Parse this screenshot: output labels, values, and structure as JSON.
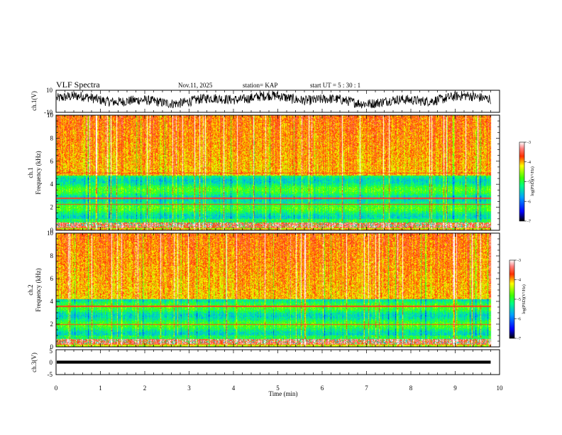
{
  "figure": {
    "title": "VLF Spectra",
    "date": "Nov.11, 2025",
    "station": "station= KAP",
    "start": "start  UT =  5 : 30 : 1"
  },
  "chart_data": [
    {
      "type": "line",
      "name": "ch1-waveform",
      "ylabel": "ch.1(V)",
      "ylim": [
        -10,
        10
      ],
      "yticks": [
        "10",
        "-10"
      ],
      "xlim": [
        0,
        10
      ]
    },
    {
      "type": "heatmap",
      "name": "ch1-spectrogram",
      "ylabel": "ch.1",
      "ylabel2": "Frequency (kHz)",
      "ylim": [
        0,
        10
      ],
      "yticks": [
        "0",
        "2",
        "4",
        "6",
        "8",
        "10"
      ],
      "xlim": [
        0,
        10
      ],
      "colorbar": {
        "label": "log(PSD)(V²/Hz)",
        "min": -7,
        "max": -3,
        "ticks": [
          "-3",
          "-4",
          "-5",
          "-6",
          "-7"
        ]
      }
    },
    {
      "type": "heatmap",
      "name": "ch2-spectrogram",
      "ylabel": "ch.2",
      "ylabel2": "Frequency (kHz)",
      "ylim": [
        0,
        10
      ],
      "yticks": [
        "0",
        "2",
        "4",
        "6",
        "8",
        "10"
      ],
      "xlim": [
        0,
        10
      ],
      "colorbar": {
        "label": "log(PSD)(V²/Hz)",
        "min": -7,
        "max": -3,
        "ticks": [
          "-3",
          "-4",
          "-5",
          "-6",
          "-7"
        ]
      }
    },
    {
      "type": "line",
      "name": "ch3-waveform",
      "ylabel": "ch.3(V)",
      "ylim": [
        -5,
        5
      ],
      "yticks": [
        "5",
        "0",
        "-5"
      ],
      "xlim": [
        0,
        10
      ]
    }
  ],
  "xaxis": {
    "label": "Time  (min)",
    "ticks": [
      "0",
      "1",
      "2",
      "3",
      "4",
      "5",
      "6",
      "7",
      "8",
      "9",
      "10"
    ],
    "data_end": 9.8
  }
}
